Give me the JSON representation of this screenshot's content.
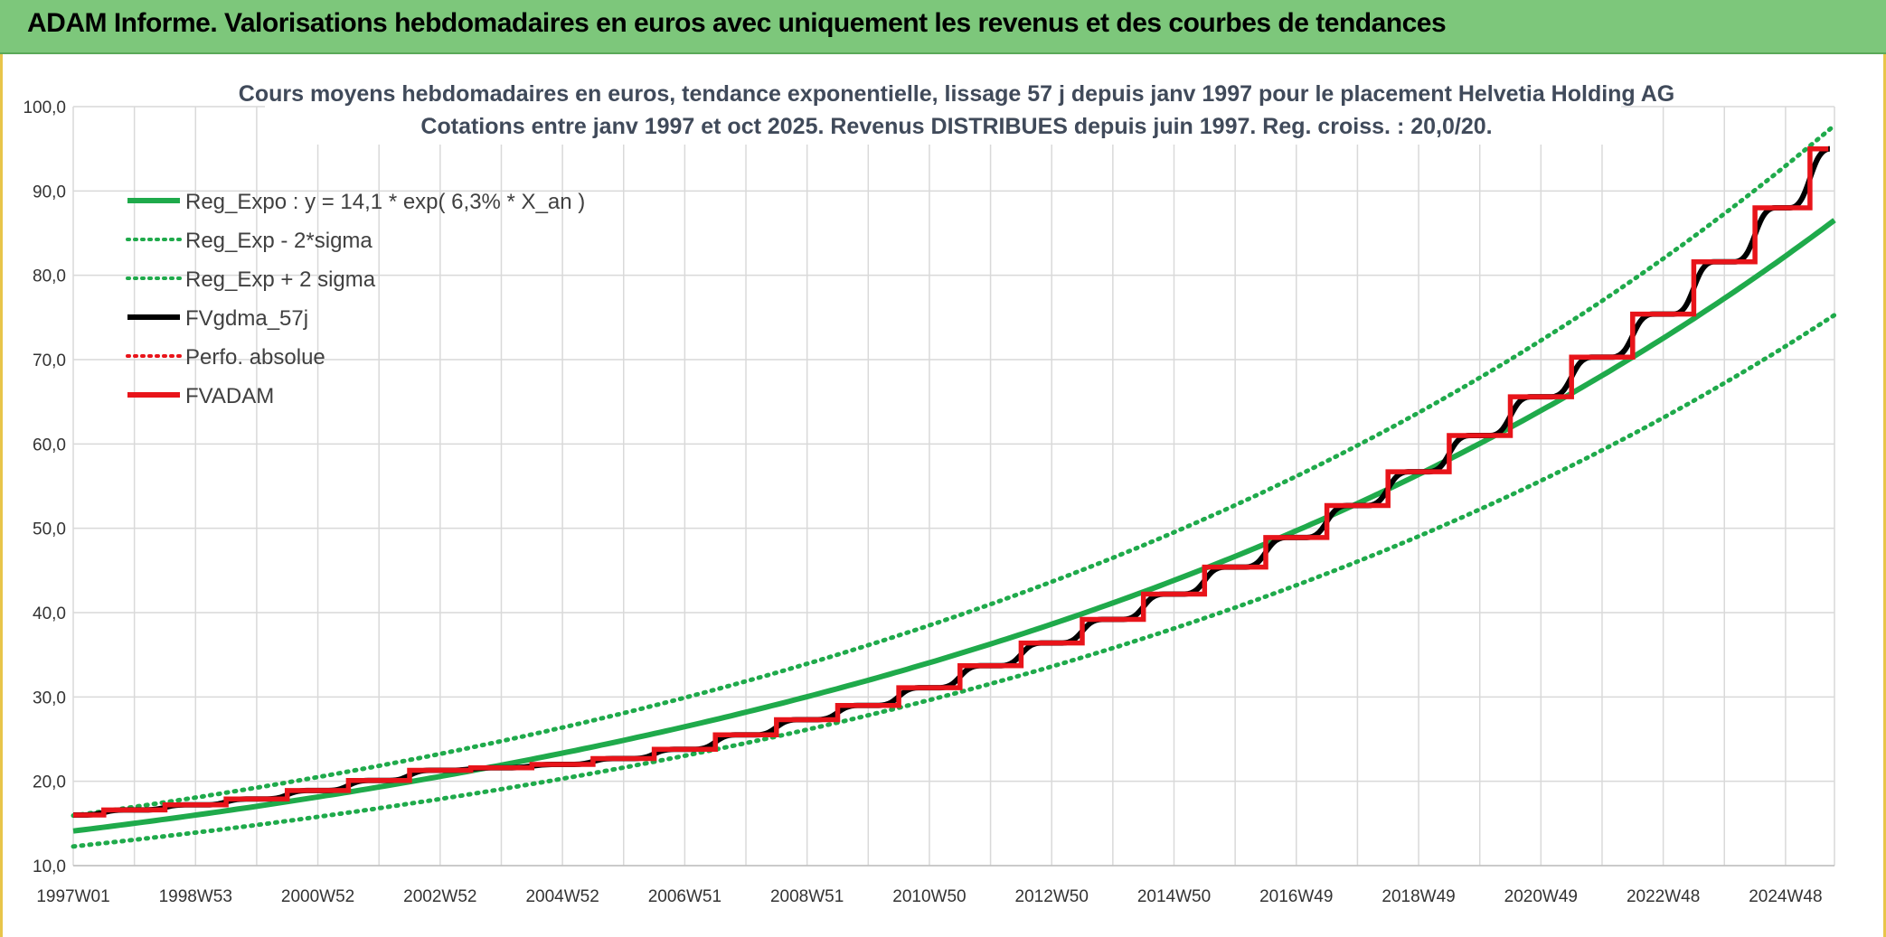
{
  "header": {
    "title": "ADAM Informe. Valorisations hebdomadaires en euros avec uniquement les revenus et des courbes de tendances"
  },
  "chart_data": {
    "type": "line",
    "title": "Cours moyens hebdomadaires en euros, tendance exponentielle, lissage 57 j depuis janv 1997 pour le placement Helvetia Holding AG",
    "subtitle": "Cotations entre janv 1997 et oct 2025. Revenus DISTRIBUES depuis juin 1997. Reg. croiss. : 20,0/20.",
    "xlabel": "",
    "ylabel": "",
    "ylim": [
      10,
      100
    ],
    "y_ticks": [
      "10,0",
      "20,0",
      "30,0",
      "40,0",
      "50,0",
      "60,0",
      "70,0",
      "80,0",
      "90,0",
      "100,0"
    ],
    "x_tick_labels": [
      "1997W01",
      "1998W53",
      "2000W52",
      "2002W52",
      "2004W52",
      "2006W51",
      "2008W51",
      "2010W50",
      "2012W50",
      "2014W50",
      "2016W49",
      "2018W49",
      "2020W49",
      "2022W48",
      "2024W48"
    ],
    "x_range_years": [
      1997.0,
      2025.8
    ],
    "grid": true,
    "legend_position": "top-left",
    "regression": {
      "a": 14.1,
      "rate": 0.063,
      "sigma_factor": 0.13
    },
    "series": [
      {
        "name": "Reg_Expo : y = 14,1 * exp( 6,3% *  X_an )",
        "color": "#1faa4b",
        "style": "solid"
      },
      {
        "name": "Reg_Exp - 2*sigma",
        "color": "#1faa4b",
        "style": "dotted"
      },
      {
        "name": "Reg_Exp + 2 sigma",
        "color": "#1faa4b",
        "style": "dotted"
      },
      {
        "name": "FVgdma_57j",
        "color": "#000000",
        "style": "solid"
      },
      {
        "name": "Perfo. absolue",
        "color": "#e8141a",
        "style": "dotted"
      },
      {
        "name": "FVADAM",
        "color": "#e8141a",
        "style": "solid"
      }
    ],
    "fvadam_steps": [
      {
        "x": 1997.0,
        "y": 16.0
      },
      {
        "x": 1997.5,
        "y": 16.6
      },
      {
        "x": 1998.5,
        "y": 17.2
      },
      {
        "x": 1999.5,
        "y": 17.9
      },
      {
        "x": 2000.5,
        "y": 18.9
      },
      {
        "x": 2001.5,
        "y": 20.1
      },
      {
        "x": 2002.5,
        "y": 21.3
      },
      {
        "x": 2003.5,
        "y": 21.6
      },
      {
        "x": 2004.5,
        "y": 22.0
      },
      {
        "x": 2005.5,
        "y": 22.7
      },
      {
        "x": 2006.5,
        "y": 23.8
      },
      {
        "x": 2007.5,
        "y": 25.5
      },
      {
        "x": 2008.5,
        "y": 27.3
      },
      {
        "x": 2009.5,
        "y": 29.0
      },
      {
        "x": 2010.5,
        "y": 31.1
      },
      {
        "x": 2011.5,
        "y": 33.7
      },
      {
        "x": 2012.5,
        "y": 36.4
      },
      {
        "x": 2013.5,
        "y": 39.2
      },
      {
        "x": 2014.5,
        "y": 42.2
      },
      {
        "x": 2015.5,
        "y": 45.4
      },
      {
        "x": 2016.5,
        "y": 48.9
      },
      {
        "x": 2017.5,
        "y": 52.7
      },
      {
        "x": 2018.5,
        "y": 56.7
      },
      {
        "x": 2019.5,
        "y": 61.0
      },
      {
        "x": 2020.5,
        "y": 65.6
      },
      {
        "x": 2021.5,
        "y": 70.3
      },
      {
        "x": 2022.5,
        "y": 75.4
      },
      {
        "x": 2023.5,
        "y": 81.6
      },
      {
        "x": 2024.5,
        "y": 88.0
      },
      {
        "x": 2025.4,
        "y": 95.0
      }
    ]
  }
}
